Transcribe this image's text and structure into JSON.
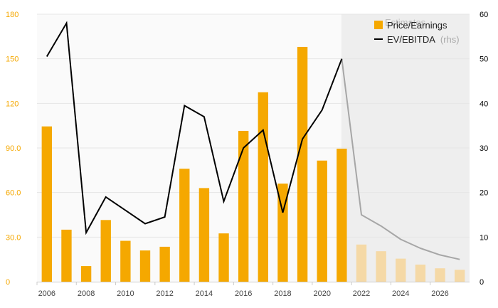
{
  "chart_data": {
    "type": "bar+line",
    "title": "",
    "estimates_label": "Estimates",
    "years": [
      2006,
      2007,
      2008,
      2009,
      2010,
      2011,
      2012,
      2013,
      2014,
      2015,
      2016,
      2017,
      2018,
      2019,
      2020,
      2021,
      2022,
      2023,
      2024,
      2025,
      2026,
      2027
    ],
    "estimate_start_year": 2022,
    "x_tick_labels": [
      "2006",
      "2008",
      "2010",
      "2012",
      "2014",
      "2016",
      "2018",
      "2020",
      "2022",
      "2024",
      "2026"
    ],
    "series": [
      {
        "name": "Price/Earnings",
        "type": "bar",
        "axis": "left",
        "color": "#f5a800",
        "estimate_color": "#f5d9a6",
        "values": [
          104.5,
          35,
          10.5,
          41.5,
          27.5,
          21,
          23.5,
          76,
          63,
          32.5,
          101.5,
          127.5,
          66,
          158,
          81.5,
          89.5,
          25,
          20.5,
          15.5,
          11.5,
          9,
          8
        ]
      },
      {
        "name": "EV/EBITDA",
        "name_suffix": "(rhs)",
        "type": "line",
        "axis": "right",
        "color": "#000000",
        "estimate_color": "#a6a6a6",
        "values": [
          50.5,
          58,
          11,
          19,
          16,
          13,
          14.5,
          39.5,
          37,
          18,
          30,
          34,
          15.5,
          32,
          38.5,
          50,
          15,
          12.5,
          9.5,
          7.5,
          6,
          5
        ]
      }
    ],
    "y_left": {
      "min": 0,
      "max": 180,
      "ticks": [
        "0",
        "30.0",
        "60.0",
        "90.0",
        "120",
        "150",
        "180"
      ],
      "tick_values": [
        0,
        30,
        60,
        90,
        120,
        150,
        180
      ]
    },
    "y_right": {
      "min": 0,
      "max": 60,
      "ticks": [
        "0",
        "10",
        "20",
        "30",
        "40",
        "50",
        "60"
      ],
      "tick_values": [
        0,
        10,
        20,
        30,
        40,
        50,
        60
      ]
    },
    "colors": {
      "left_tick": "#f5a800",
      "right_tick": "#000000",
      "grid": "#e6e6e6",
      "estimate_bg": "#eeeeee",
      "plot_bg": "#fafafa"
    },
    "legend_position": "top-right"
  }
}
